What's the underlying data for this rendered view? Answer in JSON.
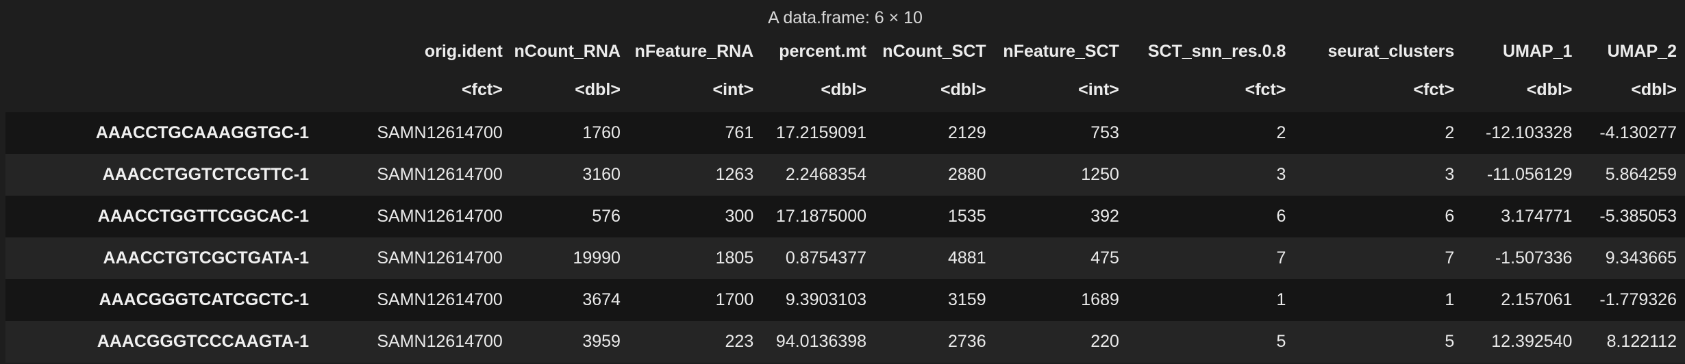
{
  "caption": "A data.frame: 6 × 10",
  "columns": [
    {
      "name": "",
      "type": ""
    },
    {
      "name": "orig.ident",
      "type": "<fct>"
    },
    {
      "name": "nCount_RNA",
      "type": "<dbl>"
    },
    {
      "name": "nFeature_RNA",
      "type": "<int>"
    },
    {
      "name": "percent.mt",
      "type": "<dbl>"
    },
    {
      "name": "nCount_SCT",
      "type": "<dbl>"
    },
    {
      "name": "nFeature_SCT",
      "type": "<int>"
    },
    {
      "name": "SCT_snn_res.0.8",
      "type": "<fct>"
    },
    {
      "name": "seurat_clusters",
      "type": "<fct>"
    },
    {
      "name": "UMAP_1",
      "type": "<dbl>"
    },
    {
      "name": "UMAP_2",
      "type": "<dbl>"
    }
  ],
  "rows": [
    [
      "AAACCTGCAAAGGTGC-1",
      "SAMN12614700",
      "1760",
      "761",
      "17.2159091",
      "2129",
      "753",
      "2",
      "2",
      "-12.103328",
      "-4.130277"
    ],
    [
      "AAACCTGGTCTCGTTC-1",
      "SAMN12614700",
      "3160",
      "1263",
      "2.2468354",
      "2880",
      "1250",
      "3",
      "3",
      "-11.056129",
      "5.864259"
    ],
    [
      "AAACCTGGTTCGGCAC-1",
      "SAMN12614700",
      "576",
      "300",
      "17.1875000",
      "1535",
      "392",
      "6",
      "6",
      "3.174771",
      "-5.385053"
    ],
    [
      "AAACCTGTCGCTGATA-1",
      "SAMN12614700",
      "19990",
      "1805",
      "0.8754377",
      "4881",
      "475",
      "7",
      "7",
      "-1.507336",
      "9.343665"
    ],
    [
      "AAACGGGTCATCGCTC-1",
      "SAMN12614700",
      "3674",
      "1700",
      "9.3903103",
      "3159",
      "1689",
      "1",
      "1",
      "2.157061",
      "-1.779326"
    ],
    [
      "AAACGGGTCCCAAGTA-1",
      "SAMN12614700",
      "3959",
      "223",
      "94.0136398",
      "2736",
      "220",
      "5",
      "5",
      "12.392540",
      "8.122112"
    ]
  ]
}
